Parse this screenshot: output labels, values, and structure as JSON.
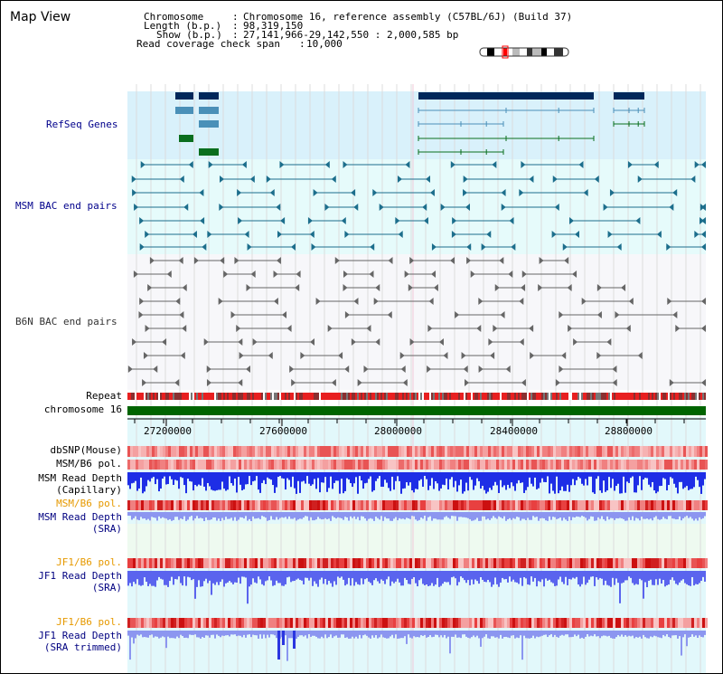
{
  "app": {
    "title": "Map View"
  },
  "info": {
    "chromosome_key": "Chromosome",
    "chromosome_val": "Chromosome 16, reference assembly (C57BL/6J) (Build 37)",
    "length_key": "Length (b.p.)",
    "length_val": "98,319,150",
    "show_key": "Show (b.p.)",
    "show_val": "27,141,966-29,142,550 : 2,000,585 bp",
    "coverage_key": "Read coverage check span",
    "coverage_val": "10,000"
  },
  "tracks": {
    "refseq": "RefSeq Genes",
    "msm_bac": "MSM BAC end pairs",
    "b6n_bac": "B6N BAC end pairs",
    "repeat": "Repeat",
    "chromosome": "chromosome 16",
    "dbsnp": "dbSNP(Mouse)",
    "msm_b6_pol": "MSM/B6 pol.",
    "msm_depth_cap_1": "MSM Read Depth",
    "msm_depth_cap_2": "(Capillary)",
    "msm_b6_pol2": "MSM/B6 pol.",
    "msm_depth_sra_1": "MSM Read Depth",
    "msm_depth_sra_2": "(SRA)",
    "jf1_b6_pol": "JF1/B6 pol.",
    "jf1_depth_sra_1": "JF1 Read Depth",
    "jf1_depth_sra_2": "(SRA)",
    "jf1_b6_pol2": "JF1/B6 pol.",
    "jf1_depth_trim_1": "JF1 Read Depth",
    "jf1_depth_trim_2": "(SRA trimmed)"
  },
  "axis": {
    "ticks": [
      "27200000",
      "27600000",
      "28000000",
      "28400000",
      "28800000"
    ]
  },
  "colors": {
    "refseq_bg": "#d9f1fb",
    "msm_bg": "#e6fbfb",
    "b6n_bg": "#f7f7fa",
    "chrom_bar": "#006400",
    "depth_blue": "#1f35e8"
  }
}
